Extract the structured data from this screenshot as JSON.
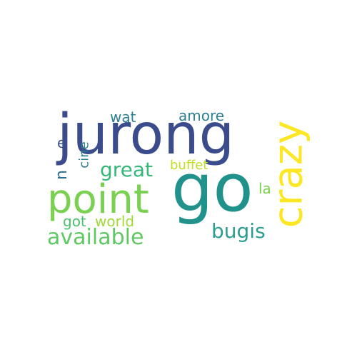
{
  "words": [
    {
      "text": "jurong",
      "color": "#3b4c8c"
    },
    {
      "text": "go",
      "color": "#21918c"
    },
    {
      "text": "point",
      "color": "#7ad151"
    },
    {
      "text": "crazy",
      "color": "#fde725"
    },
    {
      "text": "available",
      "color": "#5ec962"
    },
    {
      "text": "bugis",
      "color": "#2a9d8f"
    },
    {
      "text": "great",
      "color": "#35b779"
    },
    {
      "text": "buffet",
      "color": "#c2df23"
    },
    {
      "text": "wat",
      "color": "#2c7f8e"
    },
    {
      "text": "amore",
      "color": "#2c7f8e"
    },
    {
      "text": "world",
      "color": "#a0da39"
    },
    {
      "text": "got",
      "color": "#4ac16d"
    },
    {
      "text": "la",
      "color": "#7ad151"
    },
    {
      "text": "cine",
      "color": "#2c7f8e"
    },
    {
      "text": "e",
      "color": "#3b528b"
    },
    {
      "text": "n",
      "color": "#2e6e8e"
    }
  ]
}
